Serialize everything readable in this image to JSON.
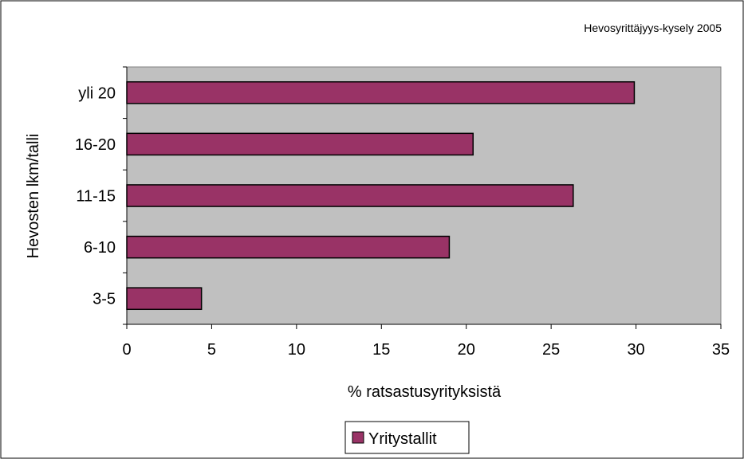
{
  "chart_data": {
    "type": "bar",
    "orientation": "horizontal",
    "annotation": "Hevosyrittäjyys-kysely 2005",
    "xlabel": "% ratsastusyrityksistä",
    "ylabel": "Hevosten lkm/talli",
    "categories": [
      "3-5",
      "6-10",
      "11-15",
      "16-20",
      "yli 20"
    ],
    "series": [
      {
        "name": "Yritystallit",
        "values": [
          4.4,
          19.0,
          26.3,
          20.4,
          29.9
        ]
      }
    ],
    "xlim": [
      0,
      35
    ],
    "xticks": [
      "0",
      "5",
      "10",
      "15",
      "20",
      "25",
      "30",
      "35"
    ],
    "grid": false,
    "legend": "bottom",
    "colors": {
      "bar_fill": "#993366",
      "plot_background": "#c0c0c0",
      "border": "#000000"
    }
  }
}
